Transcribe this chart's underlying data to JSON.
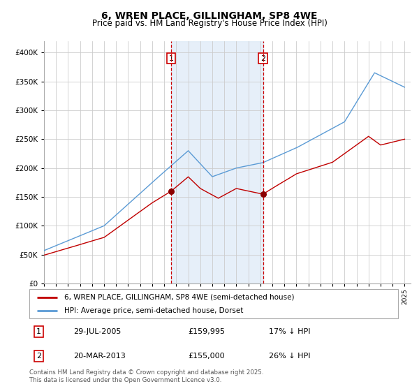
{
  "title_line1": "6, WREN PLACE, GILLINGHAM, SP8 4WE",
  "title_line2": "Price paid vs. HM Land Registry's House Price Index (HPI)",
  "legend_line1": "6, WREN PLACE, GILLINGHAM, SP8 4WE (semi-detached house)",
  "legend_line2": "HPI: Average price, semi-detached house, Dorset",
  "annotation1_label": "1",
  "annotation1_date": "29-JUL-2005",
  "annotation1_price": "£159,995",
  "annotation1_hpi": "17% ↓ HPI",
  "annotation2_label": "2",
  "annotation2_date": "20-MAR-2013",
  "annotation2_price": "£155,000",
  "annotation2_hpi": "26% ↓ HPI",
  "footnote": "Contains HM Land Registry data © Crown copyright and database right 2025.\nThis data is licensed under the Open Government Licence v3.0.",
  "hpi_color": "#5b9bd5",
  "price_color": "#c00000",
  "marker_color": "#8b0000",
  "vline_color": "#cc0000",
  "shade_color": "#dce9f7",
  "annotation_box_color": "#cc0000",
  "grid_color": "#cccccc",
  "background_color": "#ffffff",
  "ylim": [
    0,
    420000
  ],
  "yticks": [
    0,
    50000,
    100000,
    150000,
    200000,
    250000,
    300000,
    350000,
    400000
  ],
  "ytick_labels": [
    "£0",
    "£50K",
    "£100K",
    "£150K",
    "£200K",
    "£250K",
    "£300K",
    "£350K",
    "£400K"
  ],
  "year_start": 1995,
  "year_end": 2025,
  "sale1_year": 2005.57,
  "sale2_year": 2013.22,
  "sale1_price": 159995,
  "sale2_price": 155000
}
